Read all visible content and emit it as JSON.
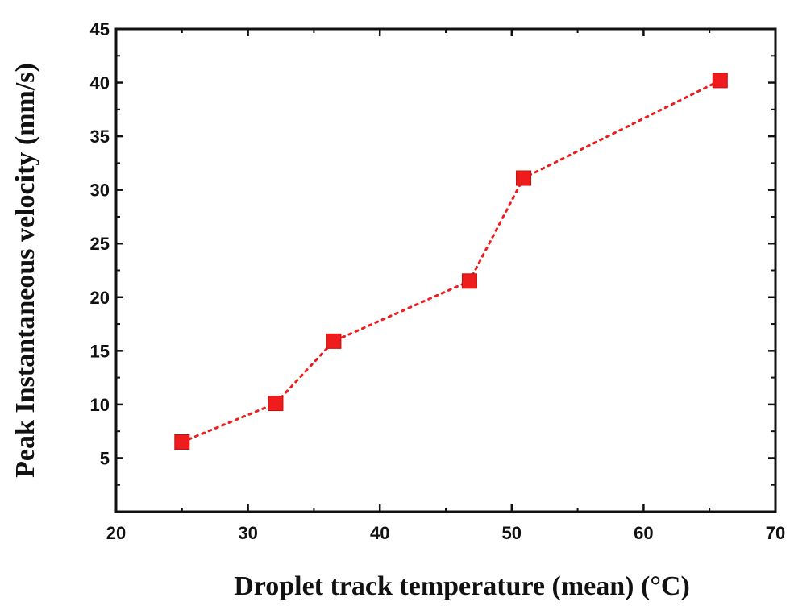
{
  "chart_data": {
    "type": "line",
    "title": "",
    "xlabel": "Droplet track temperature (mean) (°C)",
    "ylabel": "Peak Instantaneous velocity (mm/s)",
    "xlim": [
      20,
      70
    ],
    "ylim": [
      0,
      45
    ],
    "xticks": [
      20,
      30,
      40,
      50,
      60,
      70
    ],
    "yticks": [
      5,
      10,
      15,
      20,
      25,
      30,
      35,
      40,
      45
    ],
    "grid": false,
    "legend": "none",
    "series": [
      {
        "color": "#ee1c1c",
        "marker": "square",
        "line_style": "dotted",
        "x": [
          25.0,
          32.1,
          36.5,
          46.8,
          50.9,
          65.8
        ],
        "y": [
          6.5,
          10.1,
          15.9,
          21.5,
          31.1,
          40.2
        ]
      }
    ]
  }
}
